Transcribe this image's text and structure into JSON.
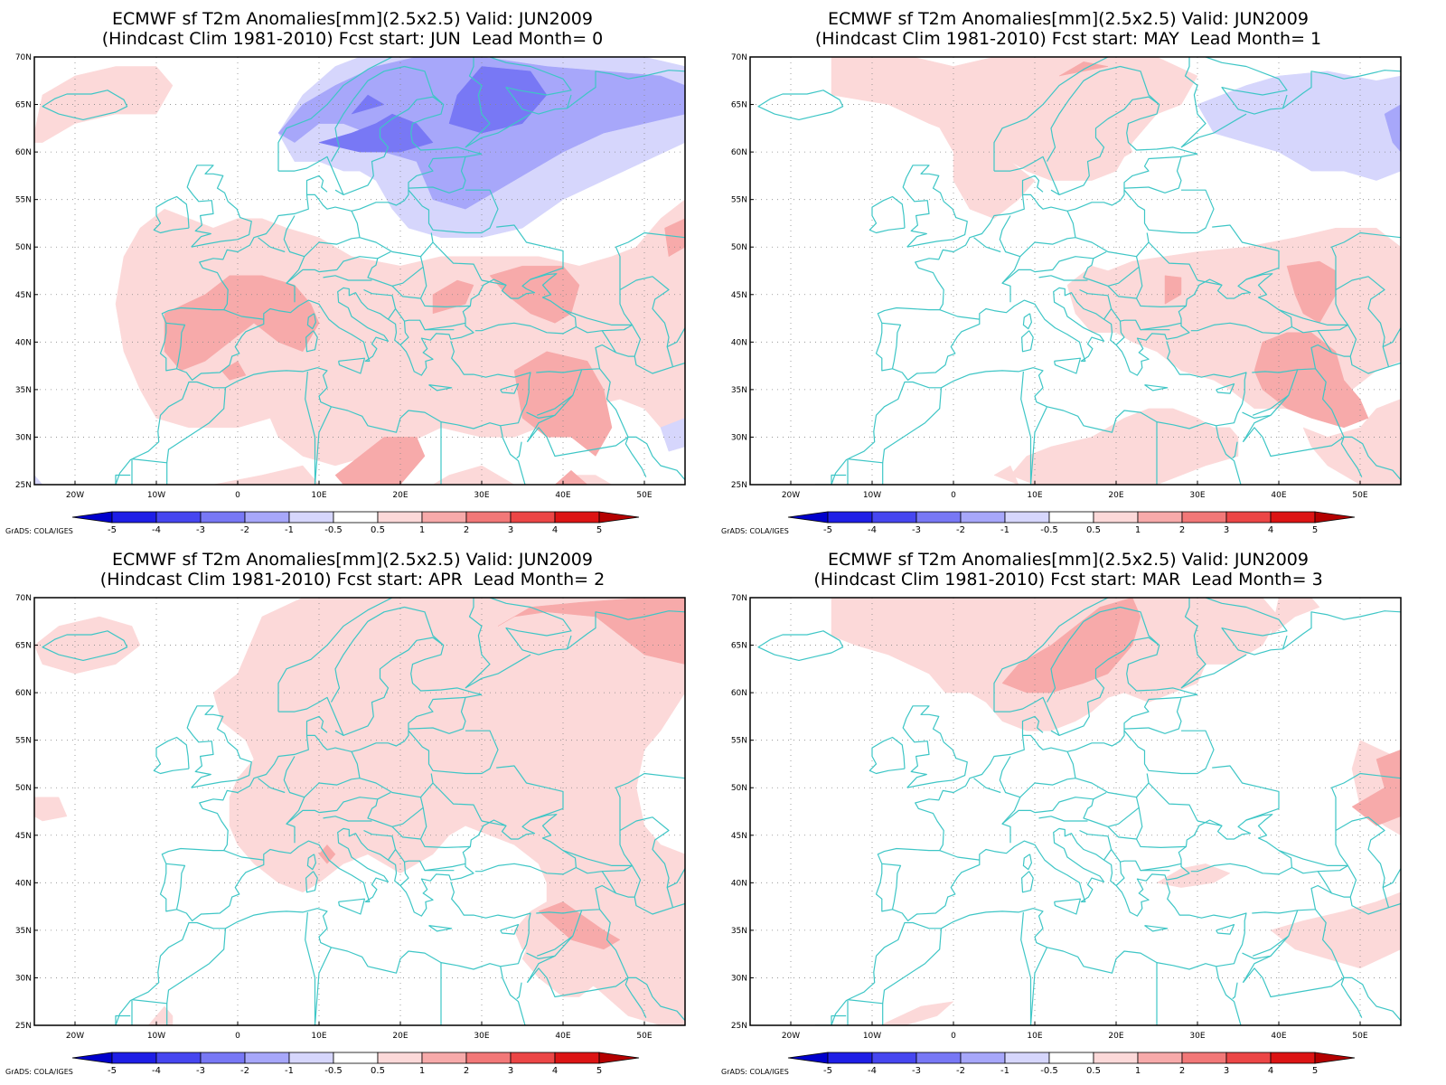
{
  "credit": "GrADS: COLA/IGES",
  "colors": {
    "coast": "#3ec6c6",
    "grid": "#888888"
  },
  "panels": [
    {
      "line1": "ECMWF sf T2m Anomalies[mm](2.5x2.5) Valid: JUN2009",
      "line2": "(Hindcast Clim 1981-2010) Fcst start: JUN  Lead Month= 0"
    },
    {
      "line1": "ECMWF sf T2m Anomalies[mm](2.5x2.5) Valid: JUN2009",
      "line2": "(Hindcast Clim 1981-2010) Fcst start: MAY  Lead Month= 1"
    },
    {
      "line1": "ECMWF sf T2m Anomalies[mm](2.5x2.5) Valid: JUN2009",
      "line2": "(Hindcast Clim 1981-2010) Fcst start: APR  Lead Month= 2"
    },
    {
      "line1": "ECMWF sf T2m Anomalies[mm](2.5x2.5) Valid: JUN2009",
      "line2": "(Hindcast Clim 1981-2010) Fcst start: MAR  Lead Month= 3"
    }
  ],
  "lat_labels": [
    "70N",
    "65N",
    "60N",
    "55N",
    "50N",
    "45N",
    "40N",
    "35N",
    "30N",
    "25N"
  ],
  "lon_labels": [
    "20W",
    "10W",
    "0",
    "10E",
    "20E",
    "30E",
    "40E",
    "50E"
  ],
  "colorbar": {
    "labels": [
      "-5",
      "-4",
      "-3",
      "-2",
      "-1",
      "-0.5",
      "0.5",
      "1",
      "2",
      "3",
      "4",
      "5"
    ],
    "colors": [
      "#0000cc",
      "#1e1ee6",
      "#4646f0",
      "#7878f5",
      "#a7a7fa",
      "#d6d6fc",
      "#ffffff",
      "#fcd9d9",
      "#f7aaaa",
      "#f27878",
      "#ec4646",
      "#dc1414",
      "#b40000"
    ]
  }
}
